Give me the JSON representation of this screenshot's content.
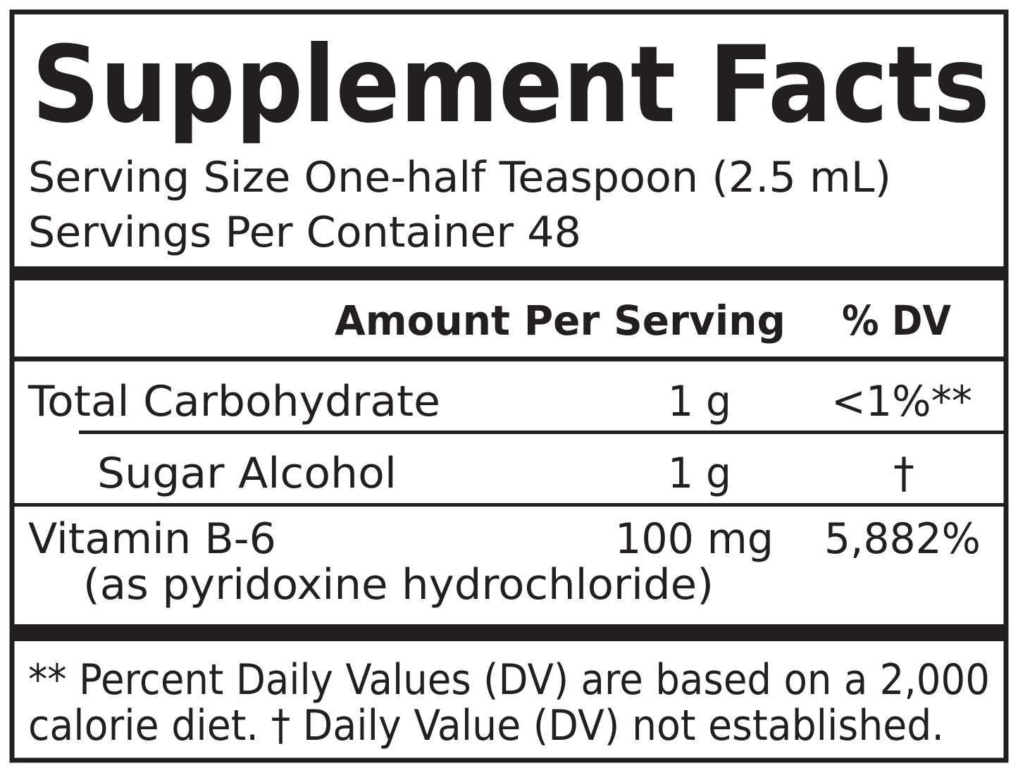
{
  "title": "Supplement Facts",
  "serving_size": "Serving Size One-half Teaspoon (2.5 mL)",
  "servings_per_container": "Servings Per Container 48",
  "header": {
    "amount": "Amount Per Serving",
    "dv": "% DV"
  },
  "rows": [
    {
      "name": "Total Carbohydrate",
      "amount": "1 g",
      "dv": "<1%**"
    },
    {
      "name": "Sugar Alcohol",
      "amount": "1 g",
      "dv": "†"
    },
    {
      "name": "Vitamin B-6",
      "detail": "(as pyridoxine hydrochloride)",
      "amount": "100 mg",
      "dv": "5,882%"
    }
  ],
  "footnote": [
    "** Percent Daily Values (DV) are based on a 2,000",
    "calorie diet. † Daily Value (DV) not established."
  ]
}
